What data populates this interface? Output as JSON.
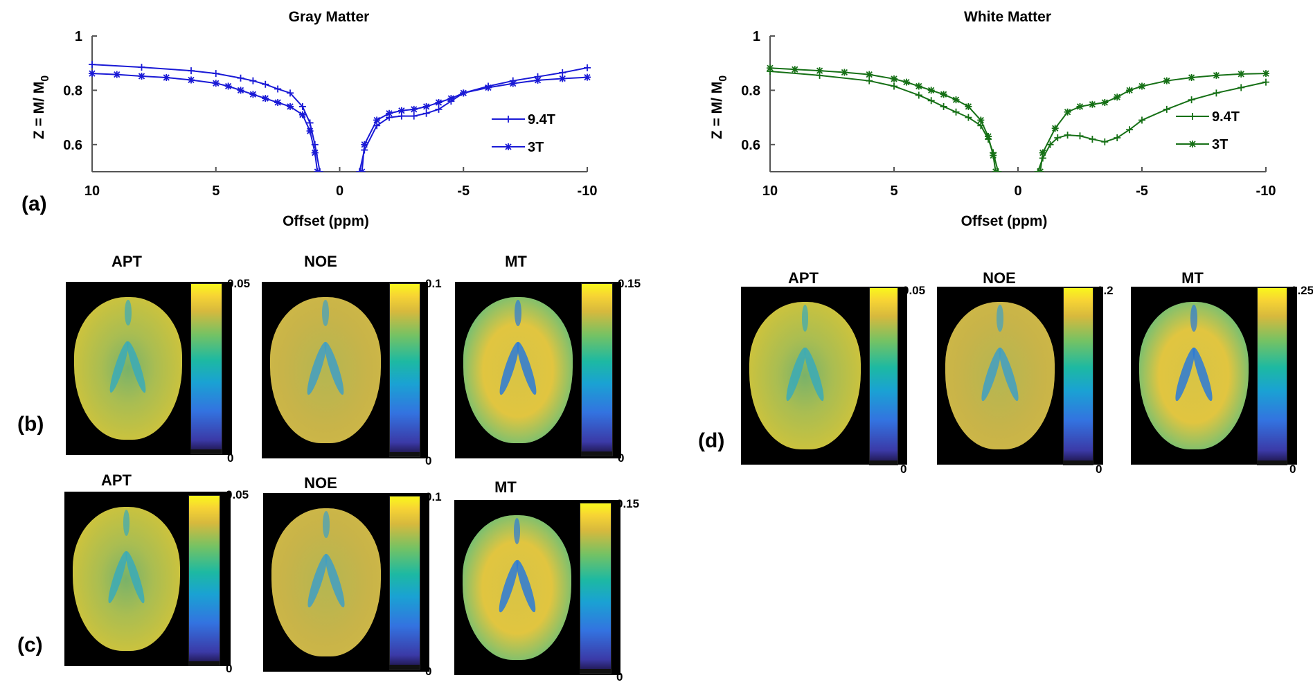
{
  "panel_labels": {
    "a": "(a)",
    "b": "(b)",
    "c": "(c)",
    "d": "(d)"
  },
  "chart_data": [
    {
      "type": "line",
      "title": "Gray Matter",
      "xlabel": "Offset (ppm)",
      "ylabel": "Z = M/ M0",
      "ylabel_main": "Z = M/ M",
      "ylabel_sub": "0",
      "xlim": [
        10,
        -10
      ],
      "ylim": [
        0.5,
        1.0
      ],
      "x_reversed": true,
      "xticks": [
        10,
        5,
        0,
        -5,
        -10
      ],
      "yticks": [
        0.6,
        0.8,
        1
      ],
      "ytick_labels": [
        "0.6",
        "0.8",
        "1"
      ],
      "xtick_labels": [
        "10",
        "5",
        "0",
        "-5",
        "-10"
      ],
      "legend_position": "right",
      "color": "#1a1ad6",
      "series": [
        {
          "name": "9.4T",
          "marker": "plus",
          "x": [
            10,
            8,
            6,
            5,
            4,
            3.5,
            3,
            2.5,
            2,
            1.5,
            1.2,
            1.0,
            0.8,
            -0.8,
            -1.0,
            -1.5,
            -2,
            -2.5,
            -3,
            -3.5,
            -4,
            -4.5,
            -5,
            -6,
            -7,
            -8,
            -9,
            -10
          ],
          "y": [
            0.895,
            0.885,
            0.872,
            0.862,
            0.845,
            0.835,
            0.822,
            0.805,
            0.79,
            0.74,
            0.68,
            0.6,
            0.5,
            0.5,
            0.58,
            0.67,
            0.7,
            0.705,
            0.705,
            0.715,
            0.73,
            0.76,
            0.79,
            0.815,
            0.835,
            0.85,
            0.865,
            0.883
          ]
        },
        {
          "name": "3T",
          "marker": "star",
          "x": [
            10,
            9,
            8,
            7,
            6,
            5,
            4.5,
            4,
            3.5,
            3,
            2.5,
            2,
            1.5,
            1.2,
            1.0,
            0.9,
            -0.9,
            -1.0,
            -1.5,
            -2,
            -2.5,
            -3,
            -3.5,
            -4,
            -4.5,
            -5,
            -6,
            -7,
            -8,
            -9,
            -10
          ],
          "y": [
            0.862,
            0.858,
            0.852,
            0.847,
            0.838,
            0.826,
            0.815,
            0.8,
            0.785,
            0.77,
            0.755,
            0.74,
            0.71,
            0.65,
            0.57,
            0.5,
            0.5,
            0.6,
            0.69,
            0.715,
            0.725,
            0.73,
            0.74,
            0.755,
            0.77,
            0.79,
            0.81,
            0.825,
            0.837,
            0.843,
            0.848
          ]
        }
      ]
    },
    {
      "type": "line",
      "title": "White Matter",
      "xlabel": "Offset (ppm)",
      "ylabel": "Z = M/ M0",
      "ylabel_main": "Z = M/ M",
      "ylabel_sub": "0",
      "xlim": [
        10,
        -10
      ],
      "ylim": [
        0.5,
        1.0
      ],
      "x_reversed": true,
      "xticks": [
        10,
        5,
        0,
        -5,
        -10
      ],
      "yticks": [
        0.6,
        0.8,
        1
      ],
      "ytick_labels": [
        "0.6",
        "0.8",
        "1"
      ],
      "xtick_labels": [
        "10",
        "5",
        "0",
        "-5",
        "-10"
      ],
      "legend_position": "right",
      "color": "#167016",
      "series": [
        {
          "name": "9.4T",
          "marker": "plus",
          "x": [
            10,
            8,
            6,
            5,
            4,
            3.5,
            3,
            2.5,
            2,
            1.5,
            1.2,
            1.0,
            0.8,
            -0.8,
            -1.0,
            -1.3,
            -1.6,
            -2,
            -2.5,
            -3,
            -3.5,
            -4,
            -4.5,
            -5,
            -6,
            -7,
            -8,
            -9,
            -10
          ],
          "y": [
            0.87,
            0.855,
            0.835,
            0.815,
            0.782,
            0.762,
            0.74,
            0.72,
            0.7,
            0.67,
            0.62,
            0.57,
            0.5,
            0.5,
            0.55,
            0.6,
            0.625,
            0.635,
            0.632,
            0.62,
            0.61,
            0.625,
            0.655,
            0.69,
            0.73,
            0.765,
            0.79,
            0.81,
            0.83
          ]
        },
        {
          "name": "3T",
          "marker": "star",
          "x": [
            10,
            9,
            8,
            7,
            6,
            5,
            4.5,
            4,
            3.5,
            3,
            2.5,
            2,
            1.5,
            1.2,
            1.0,
            0.9,
            -0.9,
            -1.0,
            -1.5,
            -2,
            -2.5,
            -3,
            -3.5,
            -4,
            -4.5,
            -5,
            -6,
            -7,
            -8,
            -9,
            -10
          ],
          "y": [
            0.882,
            0.877,
            0.872,
            0.866,
            0.858,
            0.842,
            0.83,
            0.815,
            0.8,
            0.785,
            0.765,
            0.74,
            0.69,
            0.63,
            0.56,
            0.5,
            0.5,
            0.57,
            0.66,
            0.72,
            0.74,
            0.748,
            0.755,
            0.775,
            0.8,
            0.815,
            0.835,
            0.847,
            0.855,
            0.86,
            0.862
          ]
        }
      ]
    }
  ],
  "map_panels": [
    {
      "panel": "b",
      "maps": [
        {
          "title": "APT",
          "max": "0.05",
          "min": "0"
        },
        {
          "title": "NOE",
          "max": "0.1",
          "min": "0"
        },
        {
          "title": "MT",
          "max": "0.15",
          "min": "0"
        }
      ]
    },
    {
      "panel": "c",
      "maps": [
        {
          "title": "APT",
          "max": "0.05",
          "min": "0"
        },
        {
          "title": "NOE",
          "max": "0.1",
          "min": "0"
        },
        {
          "title": "MT",
          "max": "0.15",
          "min": "0"
        }
      ]
    },
    {
      "panel": "d",
      "maps": [
        {
          "title": "APT",
          "max": "0.05",
          "min": "0"
        },
        {
          "title": "NOE",
          "max": "0.2",
          "min": "0"
        },
        {
          "title": "MT",
          "max": "0.25",
          "min": "0"
        }
      ]
    }
  ],
  "colormap": [
    "#1a0f3c",
    "#3b3aa7",
    "#3373e0",
    "#1aa2d3",
    "#1db9a2",
    "#74c264",
    "#d7b93d",
    "#f7d434",
    "#f9f71b"
  ]
}
